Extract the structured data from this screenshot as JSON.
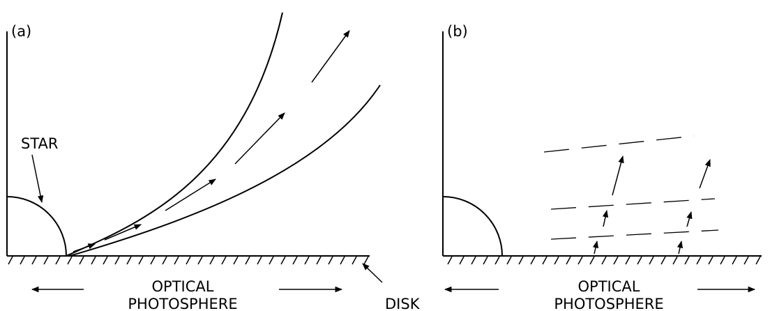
{
  "panels": [
    {
      "label": "(a)",
      "star_label": "STAR",
      "photosphere": [
        "OPTICAL",
        "PHOTOSPHERE"
      ],
      "disk_label": "DISK"
    },
    {
      "label": "(b)",
      "photosphere": [
        "OPTICAL",
        "PHOTOSPHERE"
      ]
    }
  ]
}
